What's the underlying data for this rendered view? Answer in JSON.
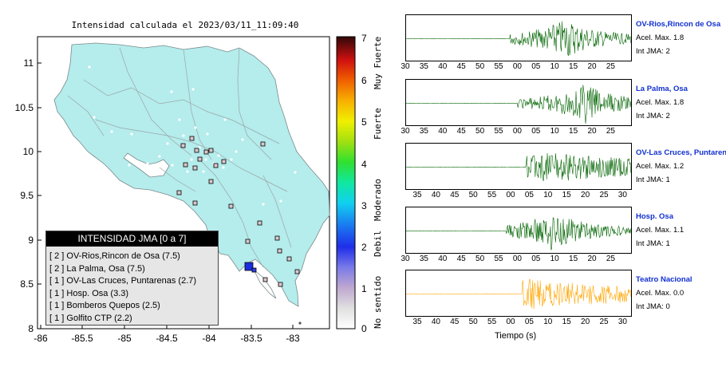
{
  "map": {
    "title": "Intensidad calculada el 2023/03/11_11:09:40",
    "y_ticks": [
      "11",
      "10.5",
      "10",
      "9.5",
      "9",
      "8.5",
      "8"
    ],
    "x_ticks": [
      "-86",
      "-85.5",
      "-85",
      "-84.5",
      "-84",
      "-83.5",
      "-83"
    ],
    "land_color": "#b5ecec",
    "station_marker_color": "#d9c8cc",
    "epicenter_color": "#1a2ee0"
  },
  "colorbar": {
    "ticks": [
      "7",
      "6",
      "5",
      "4",
      "3",
      "2",
      "1",
      "0"
    ],
    "labels": [
      "Muy Fuerte",
      "Fuerte",
      "Moderado",
      "Debil",
      "No sentido"
    ]
  },
  "legend": {
    "title": "INTENSIDAD JMA [0 a 7]",
    "rows": [
      "[ 2 ]  OV-Rios,Rincon de Osa (7.5)",
      "[ 2 ]  La Palma, Osa (7.5)",
      "[ 1 ]  OV-Las Cruces, Puntarenas (2.7)",
      "[ 1 ]  Hosp. Osa (3.3)",
      "[ 1 ]  Bomberos Quepos (2.5)",
      "[ 1 ]  Golfito CTP (2.2)"
    ]
  },
  "traces": [
    {
      "name": "OV-Rios,Rincon de Osa",
      "acc": "Acel. Max. 1.8",
      "jma": "Int JMA: 2",
      "color": "#006400",
      "ticks": [
        "30",
        "35",
        "40",
        "45",
        "50",
        "55",
        "00",
        "05",
        "10",
        "15",
        "20",
        "25"
      ]
    },
    {
      "name": "La Palma, Osa",
      "acc": "Acel. Max. 1.8",
      "jma": "Int JMA: 2",
      "color": "#006400",
      "ticks": [
        "30",
        "35",
        "40",
        "45",
        "50",
        "55",
        "00",
        "05",
        "10",
        "15",
        "20",
        "25"
      ]
    },
    {
      "name": "OV-Las Cruces, Puntarenas",
      "acc": "Acel. Max. 1.2",
      "jma": "Int JMA: 1",
      "color": "#006400",
      "ticks": [
        "35",
        "40",
        "45",
        "50",
        "55",
        "00",
        "05",
        "10",
        "15",
        "20",
        "25",
        "30"
      ]
    },
    {
      "name": "Hosp. Osa",
      "acc": "Acel. Max. 1.1",
      "jma": "Int JMA: 1",
      "color": "#006400",
      "ticks": [
        "30",
        "35",
        "40",
        "45",
        "50",
        "55",
        "00",
        "05",
        "10",
        "15",
        "20",
        "25"
      ]
    },
    {
      "name": "Teatro Nacional",
      "acc": "Acel. Max. 0.0",
      "jma": "Int JMA: 0",
      "color": "#ffa500",
      "ticks": [
        "35",
        "40",
        "45",
        "50",
        "55",
        "00",
        "05",
        "10",
        "15",
        "20",
        "25",
        "30"
      ]
    }
  ],
  "x_axis_label": "Tiempo (s)"
}
